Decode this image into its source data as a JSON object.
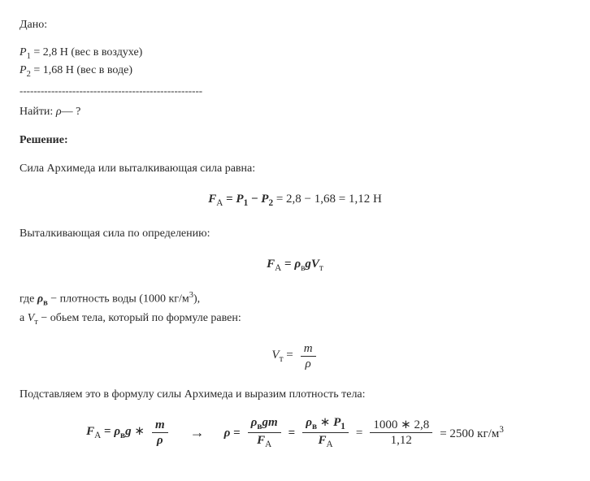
{
  "given_label": "Дано:",
  "p1_line_prefix": "P",
  "p1_sub": "1",
  "p1_line_rest": " = 2,8 Н (вес в воздухе)",
  "p2_sub": "2",
  "p2_line_rest": " = 1,68 Н (вес в воде)",
  "divider": "----------------------------------------------------",
  "find_prefix": "Найти: ",
  "find_var": "ρ",
  "find_rest": "— ?",
  "solution_label": "Решение:",
  "line_arch": "Сила Архимеда или выталкивающая сила равна:",
  "eq1": {
    "FA": "F",
    "Asub": "А",
    "eq": " = ",
    "P": "P",
    "sub1": "1",
    "minus": " − ",
    "sub2": "2",
    "rest": " = 2,8 − 1,68 = 1,12 Н"
  },
  "line_def": "Выталкивающая сила по определению:",
  "eq2": {
    "FA": "F",
    "Asub": "А",
    "eq": " = ",
    "rho": "ρ",
    "vsub": "в",
    "g": "g",
    "V": "V",
    "tsub": "т"
  },
  "where_prefix": "где ",
  "rho_v": "ρ",
  "vsub": "в",
  "where_rest": " −  плотность воды (1000 кг/м",
  "cube": "3",
  "where_close": "),",
  "where2_prefix": "a ",
  "Vt": "V",
  "tsub": "т",
  "where2_rest": " −  обьем тела, который по формуле равен:",
  "eq3": {
    "V": "V",
    "tsub": "т",
    "eq": " = ",
    "num": "m",
    "den": "ρ"
  },
  "line_subst": "Подставляем это в формулу силы Архимеда и выразим плотность тела:",
  "eq4": {
    "FA": "F",
    "Asub": "А",
    "eq": " = ",
    "rho": "ρ",
    "vsub": "в",
    "g": "g",
    "star": " ∗ ",
    "num1": "m",
    "den1": "ρ",
    "arrow": "→",
    "rho2": "ρ",
    "eq2": " = ",
    "num2a": "ρ",
    "num2b": "g",
    "num2c": "m",
    "den2": "F",
    "eq3": " = ",
    "num3a": "ρ",
    "num3b": " ∗ ",
    "num3c": "P",
    "sub1": "1",
    "eq4": " = ",
    "num4": "1000 ∗ 2,8",
    "den4": "1,12",
    "eq5": " = 2500 кг/м",
    "cube": "3"
  }
}
